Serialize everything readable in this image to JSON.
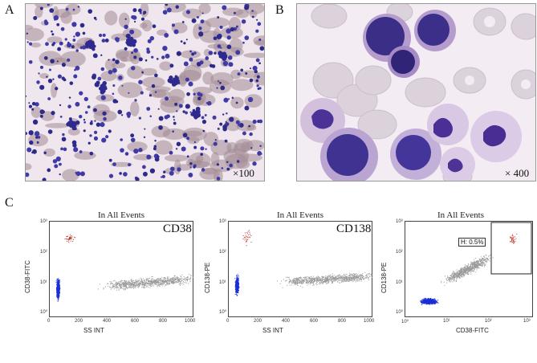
{
  "panels": {
    "a": {
      "letter": "A",
      "magnification": "×100"
    },
    "b": {
      "letter": "B",
      "magnification": "× 400"
    },
    "c": {
      "letter": "C"
    }
  },
  "flow_plots": [
    {
      "title": "In All Events",
      "marker": "CD38",
      "xlabel": "SS INT",
      "ylabel": "CD38-FITC",
      "xticks": [
        "0",
        "200",
        "400",
        "600",
        "800",
        "1000"
      ],
      "yticks": [
        "10³",
        "10²",
        "10¹",
        "10⁰"
      ]
    },
    {
      "title": "In All Events",
      "marker": "CD138",
      "xlabel": "SS INT",
      "ylabel": "CD138-PE",
      "xticks": [
        "0",
        "200",
        "400",
        "600",
        "800",
        "1000"
      ],
      "yticks": [
        "10³",
        "10²",
        "10¹",
        "10⁰"
      ]
    },
    {
      "title": "In All Events",
      "marker": "",
      "xlabel": "CD38-FITC",
      "ylabel": "CD138-PE",
      "xticks": [
        "10⁰",
        "10¹",
        "10²",
        "10³"
      ],
      "yticks": [
        "10³",
        "10²",
        "10¹",
        "10⁰"
      ],
      "gate_label": "H: 0.5%"
    }
  ],
  "colors": {
    "blue_population": "#1a2fd6",
    "gray_population": "#9a9a9a",
    "red_events": "#c0392b"
  }
}
